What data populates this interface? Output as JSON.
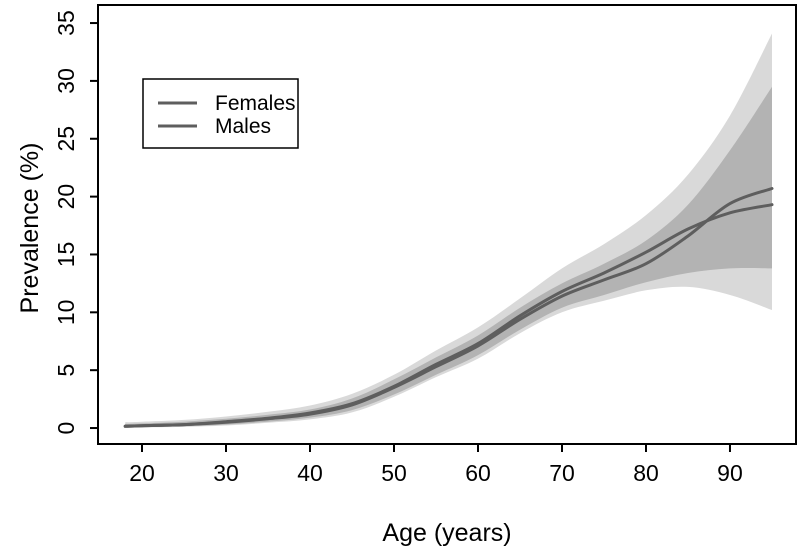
{
  "figure": {
    "background": "#ffffff",
    "axis_color": "#000000",
    "text_color": "#000000"
  },
  "legend": {
    "items": [
      {
        "label": "Females",
        "line_color": "#5e5e5e"
      },
      {
        "label": "Males",
        "line_color": "#5e5e5e"
      }
    ]
  },
  "chart_data": {
    "type": "line",
    "title": "",
    "xlabel": "Age (years)",
    "ylabel": "Prevalence (%)",
    "x_ticks": [
      20,
      30,
      40,
      50,
      60,
      70,
      80,
      90
    ],
    "y_ticks": [
      0,
      5,
      10,
      15,
      20,
      25,
      30,
      35
    ],
    "xlim": [
      14.76,
      97.86
    ],
    "ylim": [
      -1.38,
      36.56
    ],
    "grid": false,
    "legend_position": "top-left-inside",
    "ages": [
      18,
      20,
      25,
      30,
      35,
      40,
      45,
      50,
      55,
      60,
      65,
      70,
      75,
      80,
      85,
      90,
      95
    ],
    "series": [
      {
        "name": "Females",
        "color": "#5e5e5e",
        "band_color": "#b3b3b3",
        "values": [
          0.15,
          0.2,
          0.3,
          0.5,
          0.8,
          1.2,
          2.0,
          3.5,
          5.3,
          7.1,
          9.4,
          11.4,
          12.8,
          14.2,
          16.6,
          19.4,
          20.7
        ],
        "lower": [
          0.05,
          0.08,
          0.15,
          0.3,
          0.55,
          0.9,
          1.55,
          2.9,
          4.6,
          6.3,
          8.5,
          10.4,
          11.5,
          12.6,
          13.4,
          13.8,
          13.8
        ],
        "upper": [
          0.35,
          0.4,
          0.55,
          0.8,
          1.15,
          1.6,
          2.55,
          4.2,
          6.1,
          8.0,
          10.4,
          12.5,
          14.2,
          16.2,
          19.3,
          24.0,
          29.5
        ]
      },
      {
        "name": "Males",
        "color": "#5e5e5e",
        "band_color": "#d9d9d9",
        "values": [
          0.15,
          0.2,
          0.3,
          0.55,
          0.85,
          1.3,
          2.1,
          3.6,
          5.5,
          7.3,
          9.7,
          11.8,
          13.4,
          15.2,
          17.2,
          18.6,
          19.3
        ],
        "lower": [
          0.02,
          0.05,
          0.1,
          0.22,
          0.45,
          0.75,
          1.35,
          2.7,
          4.4,
          6.0,
          8.2,
          10.0,
          11.0,
          11.9,
          12.2,
          11.5,
          10.2
        ],
        "upper": [
          0.5,
          0.55,
          0.7,
          1.0,
          1.4,
          1.95,
          2.95,
          4.6,
          6.7,
          8.7,
          11.2,
          13.8,
          15.9,
          18.4,
          21.9,
          27.0,
          34.1
        ]
      }
    ]
  }
}
